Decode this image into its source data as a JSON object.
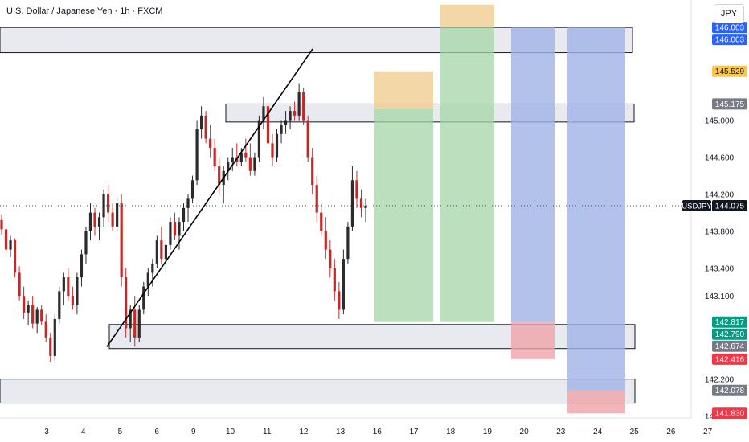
{
  "header": {
    "symbol_title": "U.S. Dollar / Japanese Yen · 1h · FXCM"
  },
  "currency_button": {
    "label": "JPY"
  },
  "colors": {
    "up": "#26a69a",
    "down": "#ef5350",
    "candle_body": "#3a3a3a",
    "candle_red": "#c62828",
    "zone_fill": "#e0e3eb",
    "target_fill": "#a5d6a7",
    "stop_fill": "#f0c989",
    "short_target_fill": "#9fb3e6",
    "short_stop_fill": "#eda3a9"
  },
  "chart_data": {
    "type": "candlestick",
    "symbol": "USDJPY",
    "timeframe": "1h",
    "source": "FXCM",
    "ylim": [
      141.78,
      146.3
    ],
    "x_ticks": [
      "3",
      "4",
      "5",
      "6",
      "9",
      "10",
      "11",
      "12",
      "13",
      "16",
      "17",
      "18",
      "19",
      "20",
      "23",
      "24",
      "25",
      "26",
      "27"
    ],
    "y_ticks": [
      145.0,
      144.6,
      144.2,
      143.8,
      143.4,
      143.1,
      142.2,
      141.8
    ],
    "y_tick_labels": [
      "145.000",
      "144.600",
      "144.200",
      "143.800",
      "143.400",
      "143.100",
      "142.200",
      "141.800"
    ],
    "price_tags": [
      {
        "label": "146.003",
        "value": 146.003,
        "color": "#2962ff",
        "name": "tag-146003-a"
      },
      {
        "label": "146.003",
        "value": 146.003,
        "color": "#2962ff",
        "name": "tag-146003-b"
      },
      {
        "label": "145.529",
        "value": 145.529,
        "color": "#f9c74f",
        "text_color": "#131722",
        "name": "tag-145529"
      },
      {
        "label": "145.175",
        "value": 145.175,
        "color": "#787b86",
        "name": "tag-145175"
      },
      {
        "label": "144.075",
        "value": 144.075,
        "color": "#131722",
        "name": "tag-last"
      },
      {
        "label": "142.817",
        "value": 142.817,
        "color": "#089981",
        "name": "tag-142817"
      },
      {
        "label": "142.790",
        "value": 142.79,
        "color": "#089981",
        "name": "tag-142790"
      },
      {
        "label": "142.674",
        "value": 142.674,
        "color": "#787b86",
        "name": "tag-142674"
      },
      {
        "label": "142.416",
        "value": 142.416,
        "color": "#f23645",
        "name": "tag-142416"
      },
      {
        "label": "142.078",
        "value": 142.078,
        "color": "#787b86",
        "name": "tag-142078"
      },
      {
        "label": "141.830",
        "value": 141.83,
        "color": "#f23645",
        "name": "tag-141830"
      }
    ],
    "last_price": {
      "symbol_label": "USDJPY",
      "value": 144.075,
      "label": "144.075"
    },
    "zones": [
      {
        "name": "zone-top",
        "from": 146.003,
        "to": 145.73
      },
      {
        "name": "zone-mid",
        "from": 145.175,
        "to": 144.98
      },
      {
        "name": "zone-low",
        "from": 142.79,
        "to": 142.53
      },
      {
        "name": "zone-bottom",
        "from": 142.2,
        "to": 141.94
      }
    ],
    "positions": [
      {
        "name": "long-position-1",
        "entry": 145.12,
        "target_low": 142.817,
        "stop_high": 145.529
      },
      {
        "name": "long-position-2",
        "entry": 146.003,
        "target_low": 142.817,
        "stop_high": 146.25
      },
      {
        "name": "short-position-1",
        "top": 146.003,
        "entry": 142.817,
        "stop": 142.416
      },
      {
        "name": "short-position-2",
        "top": 146.003,
        "entry": 142.078,
        "stop": 141.83
      }
    ],
    "trendline": {
      "from": 142.55,
      "to": 145.77
    },
    "candles": [
      [
        143.92,
        143.98,
        143.76,
        143.82
      ],
      [
        143.82,
        143.86,
        143.55,
        143.6
      ],
      [
        143.6,
        143.75,
        143.52,
        143.7
      ],
      [
        143.7,
        143.72,
        143.3,
        143.35
      ],
      [
        143.35,
        143.42,
        143.05,
        143.1
      ],
      [
        143.1,
        143.2,
        142.85,
        142.92
      ],
      [
        142.92,
        143.05,
        142.78,
        143.0
      ],
      [
        143.0,
        143.1,
        142.75,
        142.8
      ],
      [
        142.8,
        142.98,
        142.7,
        142.95
      ],
      [
        142.95,
        143.0,
        142.78,
        142.82
      ],
      [
        142.82,
        142.9,
        142.6,
        142.65
      ],
      [
        142.65,
        142.7,
        142.38,
        142.45
      ],
      [
        142.45,
        142.9,
        142.4,
        142.85
      ],
      [
        142.85,
        143.2,
        142.8,
        143.15
      ],
      [
        143.15,
        143.35,
        143.0,
        143.3
      ],
      [
        143.3,
        143.4,
        143.05,
        143.1
      ],
      [
        143.1,
        143.2,
        142.95,
        143.0
      ],
      [
        143.0,
        143.35,
        142.9,
        143.3
      ],
      [
        143.3,
        143.6,
        143.2,
        143.55
      ],
      [
        143.55,
        143.85,
        143.45,
        143.8
      ],
      [
        143.8,
        144.1,
        143.7,
        144.0
      ],
      [
        144.0,
        144.05,
        143.75,
        143.85
      ],
      [
        143.85,
        144.0,
        143.7,
        143.95
      ],
      [
        143.95,
        144.25,
        143.85,
        144.2
      ],
      [
        144.2,
        144.3,
        143.9,
        144.0
      ],
      [
        144.0,
        144.1,
        143.8,
        143.85
      ],
      [
        143.85,
        144.15,
        143.8,
        144.1
      ],
      [
        144.1,
        144.2,
        143.2,
        143.3
      ],
      [
        143.3,
        143.4,
        142.65,
        142.75
      ],
      [
        142.75,
        143.0,
        142.6,
        142.95
      ],
      [
        142.95,
        143.1,
        142.55,
        142.65
      ],
      [
        142.65,
        143.0,
        142.6,
        142.95
      ],
      [
        142.95,
        143.25,
        142.9,
        143.2
      ],
      [
        143.2,
        143.4,
        143.1,
        143.35
      ],
      [
        143.35,
        143.5,
        143.2,
        143.45
      ],
      [
        143.45,
        143.75,
        143.4,
        143.7
      ],
      [
        143.7,
        143.85,
        143.45,
        143.5
      ],
      [
        143.5,
        143.7,
        143.35,
        143.65
      ],
      [
        143.65,
        143.95,
        143.6,
        143.9
      ],
      [
        143.9,
        144.0,
        143.7,
        143.75
      ],
      [
        143.75,
        143.95,
        143.6,
        143.9
      ],
      [
        143.9,
        144.1,
        143.8,
        144.05
      ],
      [
        144.05,
        144.2,
        143.9,
        144.15
      ],
      [
        144.15,
        144.4,
        144.1,
        144.35
      ],
      [
        144.35,
        145.0,
        144.3,
        144.9
      ],
      [
        144.9,
        145.15,
        144.8,
        145.05
      ],
      [
        145.05,
        145.1,
        144.75,
        144.8
      ],
      [
        144.8,
        144.95,
        144.6,
        144.7
      ],
      [
        144.7,
        144.8,
        144.45,
        144.5
      ],
      [
        144.5,
        144.6,
        144.2,
        144.3
      ],
      [
        144.3,
        144.5,
        144.1,
        144.45
      ],
      [
        144.45,
        144.6,
        144.35,
        144.55
      ],
      [
        144.55,
        144.7,
        144.45,
        144.6
      ],
      [
        144.6,
        144.75,
        144.5,
        144.55
      ],
      [
        144.55,
        144.7,
        144.5,
        144.65
      ],
      [
        144.65,
        144.8,
        144.55,
        144.6
      ],
      [
        144.6,
        144.75,
        144.4,
        144.45
      ],
      [
        144.45,
        144.65,
        144.4,
        144.6
      ],
      [
        144.6,
        145.05,
        144.55,
        145.0
      ],
      [
        145.0,
        145.25,
        144.9,
        145.15
      ],
      [
        145.15,
        145.2,
        144.7,
        144.75
      ],
      [
        144.75,
        144.85,
        144.5,
        144.6
      ],
      [
        144.6,
        144.9,
        144.55,
        144.85
      ],
      [
        144.85,
        145.0,
        144.75,
        144.95
      ],
      [
        144.95,
        145.1,
        144.85,
        145.0
      ],
      [
        145.0,
        145.15,
        144.9,
        145.1
      ],
      [
        145.1,
        145.2,
        145.0,
        145.05
      ],
      [
        145.05,
        145.4,
        145.0,
        145.3
      ],
      [
        145.3,
        145.35,
        144.95,
        145.0
      ],
      [
        145.0,
        145.05,
        144.55,
        144.6
      ],
      [
        144.6,
        144.7,
        144.2,
        144.3
      ],
      [
        144.3,
        144.4,
        143.9,
        144.0
      ],
      [
        144.0,
        144.1,
        143.75,
        143.8
      ],
      [
        143.8,
        143.95,
        143.5,
        143.6
      ],
      [
        143.6,
        143.7,
        143.3,
        143.4
      ],
      [
        143.4,
        143.5,
        143.05,
        143.15
      ],
      [
        143.15,
        143.25,
        142.85,
        142.95
      ],
      [
        142.95,
        143.6,
        142.9,
        143.5
      ],
      [
        143.5,
        143.9,
        143.45,
        143.85
      ],
      [
        143.85,
        144.5,
        143.8,
        144.35
      ],
      [
        144.35,
        144.45,
        144.05,
        144.15
      ],
      [
        144.15,
        144.25,
        143.95,
        144.05
      ],
      [
        144.05,
        144.15,
        143.9,
        144.075
      ]
    ]
  }
}
